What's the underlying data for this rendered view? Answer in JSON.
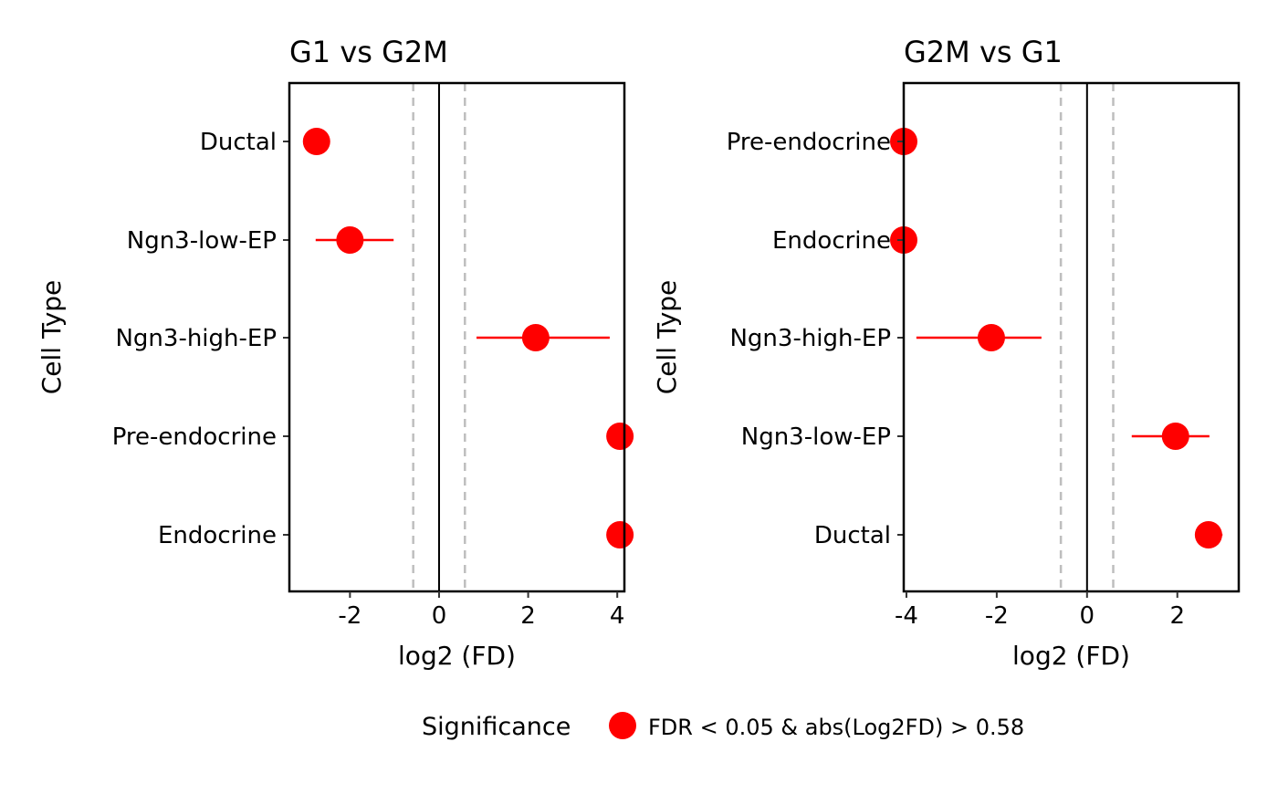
{
  "chart_data": [
    {
      "type": "scatter",
      "title": "G1 vs G2M",
      "xlabel": "log2 (FD)",
      "ylabel": "Cell Type",
      "xlim": [
        -3.36,
        4.16
      ],
      "xticks": [
        -2,
        0,
        2,
        4
      ],
      "xtick_labels": [
        "-2",
        "0",
        "2",
        "4"
      ],
      "threshold_lines": [
        -0.58,
        0.58
      ],
      "categories": [
        "Ductal",
        "Ngn3-low-EP",
        "Ngn3-high-EP",
        "Pre-endocrine",
        "Endocrine"
      ],
      "values": [
        -2.75,
        -2.0,
        2.17,
        4.06,
        4.06
      ],
      "ci_low": [
        -3.0,
        -2.77,
        0.84,
        4.06,
        4.06
      ],
      "ci_high": [
        -2.5,
        -1.02,
        3.83,
        4.06,
        4.06
      ]
    },
    {
      "type": "scatter",
      "title": "G2M vs G1",
      "xlabel": "log2 (FD)",
      "ylabel": "Cell Type",
      "xlim": [
        -4.06,
        3.36
      ],
      "xticks": [
        -4,
        -2,
        0,
        2
      ],
      "xtick_labels": [
        "-4",
        "-2",
        "0",
        "2"
      ],
      "threshold_lines": [
        -0.58,
        0.58
      ],
      "categories": [
        "Pre-endocrine",
        "Endocrine",
        "Ngn3-high-EP",
        "Ngn3-low-EP",
        "Ductal"
      ],
      "values": [
        -4.06,
        -4.06,
        -2.12,
        1.96,
        2.69
      ],
      "ci_low": [
        -4.06,
        -4.06,
        -3.78,
        0.99,
        2.5
      ],
      "ci_high": [
        -4.06,
        -4.06,
        -1.01,
        2.71,
        3.0
      ]
    }
  ],
  "legend": {
    "title": "Significance",
    "label": "FDR < 0.05 & abs(Log2FD) > 0.58",
    "color": "#ff0000",
    "placement": "bottom"
  }
}
